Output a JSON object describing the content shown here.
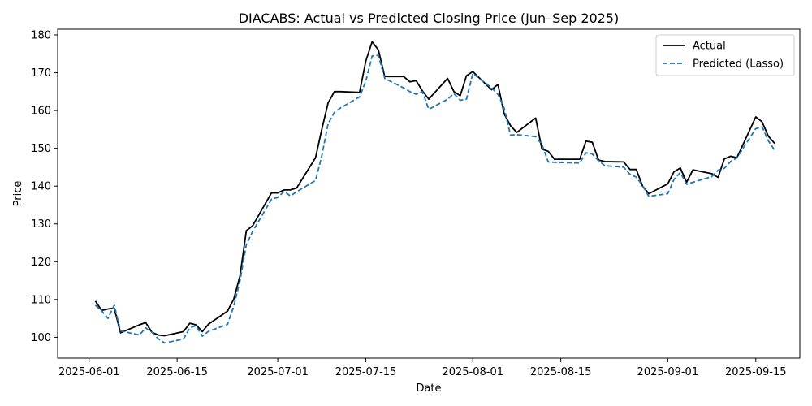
{
  "chart_data": {
    "type": "line",
    "title": "DIACABS: Actual vs Predicted Closing Price (Jun–Sep 2025)",
    "xlabel": "Date",
    "ylabel": "Price",
    "xlim": [
      "2025-05-27",
      "2025-09-22"
    ],
    "ylim": [
      94.5,
      181.5
    ],
    "x_ticks": [
      "2025-06-01",
      "2025-06-15",
      "2025-07-01",
      "2025-07-15",
      "2025-08-01",
      "2025-08-15",
      "2025-09-01",
      "2025-09-15"
    ],
    "y_ticks": [
      100,
      110,
      120,
      130,
      140,
      150,
      160,
      170,
      180
    ],
    "grid": false,
    "legend_position": "top-right",
    "x": [
      "2025-06-02",
      "2025-06-03",
      "2025-06-04",
      "2025-06-05",
      "2025-06-06",
      "2025-06-09",
      "2025-06-10",
      "2025-06-11",
      "2025-06-12",
      "2025-06-13",
      "2025-06-16",
      "2025-06-17",
      "2025-06-18",
      "2025-06-19",
      "2025-06-20",
      "2025-06-23",
      "2025-06-24",
      "2025-06-25",
      "2025-06-26",
      "2025-06-27",
      "2025-06-30",
      "2025-07-01",
      "2025-07-02",
      "2025-07-03",
      "2025-07-04",
      "2025-07-07",
      "2025-07-08",
      "2025-07-09",
      "2025-07-10",
      "2025-07-11",
      "2025-07-14",
      "2025-07-15",
      "2025-07-16",
      "2025-07-17",
      "2025-07-18",
      "2025-07-21",
      "2025-07-22",
      "2025-07-23",
      "2025-07-24",
      "2025-07-25",
      "2025-07-28",
      "2025-07-29",
      "2025-07-30",
      "2025-07-31",
      "2025-08-01",
      "2025-08-04",
      "2025-08-05",
      "2025-08-06",
      "2025-08-07",
      "2025-08-08",
      "2025-08-11",
      "2025-08-12",
      "2025-08-13",
      "2025-08-14",
      "2025-08-18",
      "2025-08-19",
      "2025-08-20",
      "2025-08-21",
      "2025-08-22",
      "2025-08-25",
      "2025-08-26",
      "2025-08-27",
      "2025-08-28",
      "2025-08-29",
      "2025-09-01",
      "2025-09-02",
      "2025-09-03",
      "2025-09-04",
      "2025-09-05",
      "2025-09-08",
      "2025-09-09",
      "2025-09-10",
      "2025-09-11",
      "2025-09-12",
      "2025-09-15",
      "2025-09-16",
      "2025-09-17",
      "2025-09-18"
    ],
    "series": [
      {
        "name": "Actual",
        "color": "#000000",
        "style": "solid",
        "values": [
          109.6,
          107.1,
          107.5,
          107.7,
          101.2,
          103.3,
          103.9,
          101.3,
          100.6,
          100.4,
          101.5,
          103.7,
          103.3,
          101.5,
          103.5,
          106.9,
          110.1,
          116.3,
          128.2,
          129.5,
          138.2,
          138.2,
          139.0,
          139.0,
          139.5,
          147.5,
          155.0,
          162.0,
          165.0,
          165.0,
          164.8,
          173.1,
          178.2,
          176.0,
          169.0,
          169.0,
          167.6,
          167.9,
          165.2,
          163.0,
          168.5,
          165.0,
          163.9,
          169.2,
          170.3,
          165.5,
          166.9,
          159.1,
          156.0,
          154.2,
          158.0,
          149.8,
          149.2,
          147.1,
          147.1,
          151.9,
          151.6,
          146.9,
          146.5,
          146.4,
          144.4,
          144.4,
          140.0,
          138.0,
          140.6,
          143.8,
          144.8,
          141.0,
          144.3,
          143.3,
          142.3,
          147.2,
          147.9,
          147.5,
          158.3,
          157.0,
          153.2,
          151.3
        ]
      },
      {
        "name": "Predicted (Lasso)",
        "color": "#1f77b4",
        "style": "dashed",
        "values": [
          108.5,
          107.0,
          105.0,
          108.5,
          101.7,
          100.6,
          102.5,
          101.3,
          99.6,
          98.5,
          99.5,
          102.5,
          103.1,
          100.3,
          101.6,
          103.4,
          108.2,
          115.0,
          124.5,
          128.0,
          136.5,
          137.0,
          138.6,
          137.4,
          138.5,
          141.5,
          148.0,
          156.5,
          159.5,
          160.7,
          163.6,
          167.8,
          174.4,
          174.6,
          168.5,
          166.0,
          165.0,
          164.3,
          165.0,
          160.3,
          163.0,
          164.5,
          162.7,
          163.0,
          169.8,
          166.0,
          164.3,
          160.6,
          153.5,
          153.6,
          153.1,
          151.0,
          146.4,
          146.3,
          146.1,
          148.8,
          148.5,
          146.7,
          145.4,
          145.0,
          143.1,
          142.4,
          140.1,
          137.3,
          138.0,
          141.8,
          143.6,
          140.5,
          141.0,
          142.5,
          144.2,
          144.7,
          146.5,
          147.5,
          155.2,
          155.7,
          152.0,
          149.5
        ]
      }
    ]
  }
}
